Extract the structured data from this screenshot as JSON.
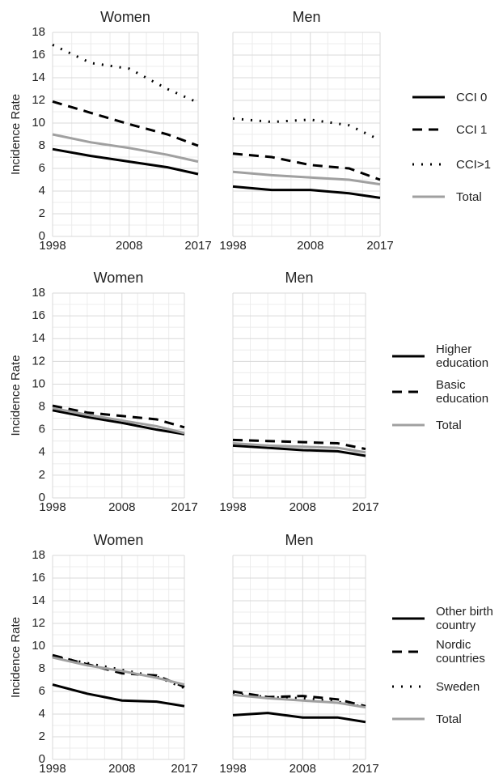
{
  "chart_data": [
    {
      "type": "line",
      "facets": [
        "Women",
        "Men"
      ],
      "ylabel": "Incidence Rate",
      "x": [
        1998,
        2003,
        2008,
        2013,
        2017
      ],
      "xlim": [
        1998,
        2017
      ],
      "xticks": [
        1998,
        2008,
        2017
      ],
      "ylim": [
        0,
        18
      ],
      "yticks": [
        0,
        2,
        4,
        6,
        8,
        10,
        12,
        14,
        16,
        18
      ],
      "grid": true,
      "series": [
        {
          "name": "CCI 0",
          "color": "#000000",
          "dash": "solid",
          "values": [
            [
              7.7,
              7.1,
              6.6,
              6.1,
              5.5
            ],
            [
              4.4,
              4.1,
              4.1,
              3.8,
              3.4
            ]
          ]
        },
        {
          "name": "CCI 1",
          "color": "#000000",
          "dash": "dashed",
          "values": [
            [
              11.9,
              10.9,
              9.9,
              9.0,
              8.0
            ],
            [
              7.3,
              7.0,
              6.3,
              6.0,
              5.0
            ]
          ]
        },
        {
          "name": "CCI>1",
          "color": "#000000",
          "dash": "dotted",
          "values": [
            [
              16.9,
              15.3,
              14.8,
              13.0,
              11.8
            ],
            [
              10.4,
              10.1,
              10.3,
              9.8,
              8.5
            ]
          ]
        },
        {
          "name": "Total",
          "color": "#a0a0a0",
          "dash": "solid",
          "values": [
            [
              9.0,
              8.3,
              7.8,
              7.2,
              6.6
            ],
            [
              5.7,
              5.4,
              5.2,
              5.0,
              4.6
            ]
          ]
        }
      ]
    },
    {
      "type": "line",
      "facets": [
        "Women",
        "Men"
      ],
      "ylabel": "Incidence Rate",
      "x": [
        1998,
        2003,
        2008,
        2013,
        2017
      ],
      "xlim": [
        1998,
        2017
      ],
      "xticks": [
        1998,
        2008,
        2017
      ],
      "ylim": [
        0,
        18
      ],
      "yticks": [
        0,
        2,
        4,
        6,
        8,
        10,
        12,
        14,
        16,
        18
      ],
      "grid": true,
      "series": [
        {
          "name": "Higher education",
          "color": "#000000",
          "dash": "solid",
          "values": [
            [
              7.7,
              7.1,
              6.6,
              6.0,
              5.6
            ],
            [
              4.6,
              4.4,
              4.2,
              4.1,
              3.7
            ]
          ]
        },
        {
          "name": "Basic education",
          "color": "#000000",
          "dash": "dashed",
          "values": [
            [
              8.1,
              7.5,
              7.2,
              6.9,
              6.2
            ],
            [
              5.1,
              5.0,
              4.9,
              4.8,
              4.3
            ]
          ]
        },
        {
          "name": "Total",
          "color": "#a0a0a0",
          "dash": "solid",
          "values": [
            [
              7.9,
              7.3,
              6.8,
              6.3,
              5.7
            ],
            [
              4.8,
              4.6,
              4.5,
              4.4,
              4.0
            ]
          ]
        }
      ]
    },
    {
      "type": "line",
      "facets": [
        "Women",
        "Men"
      ],
      "ylabel": "Incidence Rate",
      "x": [
        1998,
        2003,
        2008,
        2013,
        2017
      ],
      "xlim": [
        1998,
        2017
      ],
      "xticks": [
        1998,
        2008,
        2017
      ],
      "ylim": [
        0,
        18
      ],
      "yticks": [
        0,
        2,
        4,
        6,
        8,
        10,
        12,
        14,
        16,
        18
      ],
      "grid": true,
      "series": [
        {
          "name": "Other birth country",
          "color": "#000000",
          "dash": "solid",
          "values": [
            [
              6.6,
              5.8,
              5.2,
              5.1,
              4.7
            ],
            [
              3.9,
              4.1,
              3.7,
              3.7,
              3.3
            ]
          ]
        },
        {
          "name": "Nordic countries",
          "color": "#000000",
          "dash": "dashed",
          "values": [
            [
              9.2,
              8.4,
              7.6,
              7.4,
              6.4
            ],
            [
              6.0,
              5.5,
              5.6,
              5.3,
              4.7
            ]
          ]
        },
        {
          "name": "Sweden",
          "color": "#000000",
          "dash": "dotted",
          "values": [
            [
              9.1,
              8.5,
              7.9,
              7.3,
              6.3
            ],
            [
              5.8,
              5.5,
              5.4,
              5.1,
              4.6
            ]
          ]
        },
        {
          "name": "Total",
          "color": "#a0a0a0",
          "dash": "solid",
          "values": [
            [
              9.0,
              8.3,
              7.8,
              7.2,
              6.6
            ],
            [
              5.7,
              5.4,
              5.2,
              5.0,
              4.6
            ]
          ]
        }
      ]
    }
  ]
}
